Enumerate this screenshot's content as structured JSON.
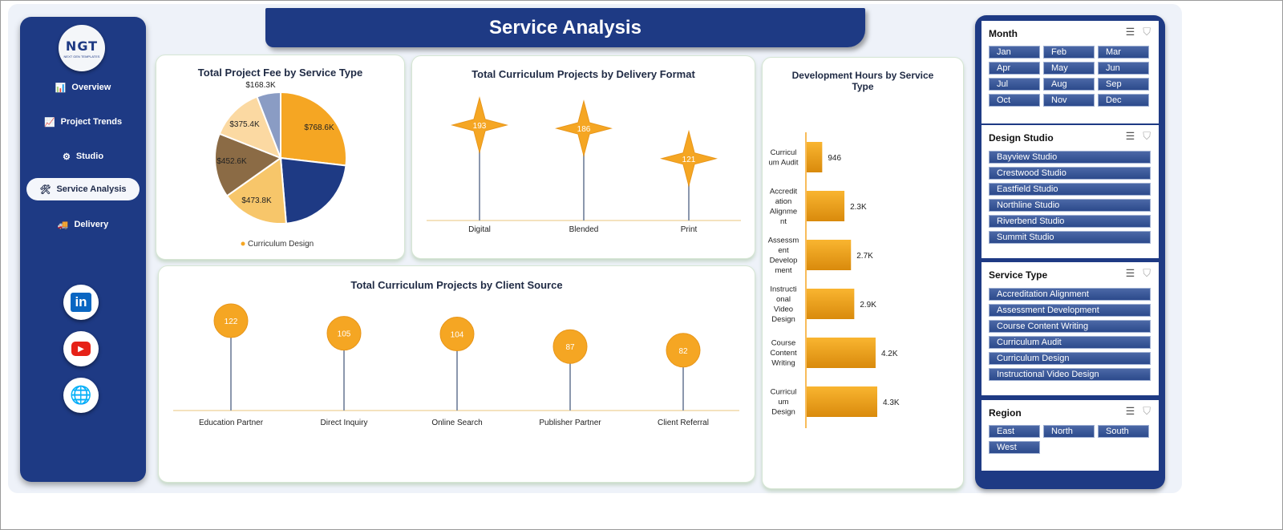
{
  "header": {
    "title": "Service Analysis"
  },
  "logo": {
    "mark": "NGT",
    "tagline": "NEXT GEN TEMPLATES"
  },
  "nav": {
    "items": [
      {
        "label": "Overview",
        "icon": "bar-chart-icon",
        "glyph": "📊",
        "active": false
      },
      {
        "label": "Project Trends",
        "icon": "line-chart-icon",
        "glyph": "📈",
        "active": false
      },
      {
        "label": "Studio",
        "icon": "gear-icon",
        "glyph": "⚙",
        "active": false
      },
      {
        "label": "Service Analysis",
        "icon": "tools-icon",
        "glyph": "🛠",
        "active": true
      },
      {
        "label": "Delivery",
        "icon": "truck-icon",
        "glyph": "🚚",
        "active": false
      }
    ],
    "social": [
      {
        "name": "linkedin-icon",
        "text": "in",
        "color": "#0a66c2"
      },
      {
        "name": "youtube-icon",
        "text": "▶",
        "color": "#e62117"
      },
      {
        "name": "globe-icon",
        "text": "🌐",
        "color": "#1a9ad6"
      }
    ]
  },
  "colors": {
    "navy": "#1e3a84",
    "accent": "#f5a623",
    "pie": [
      "#f5a623",
      "#1e3a84",
      "#f7c66a",
      "#8b6b45",
      "#fbd9a2",
      "#8a9cc4"
    ]
  },
  "charts": {
    "pie": {
      "title": "Total Project Fee by Service Type",
      "legend_label": "Curriculum Design",
      "chart_data": {
        "type": "pie",
        "labels": [
          "$768.6K",
          "",
          "$473.8K",
          "$452.6K",
          "$375.4K",
          "$168.3K"
        ],
        "values": [
          768.6,
          624.5,
          473.8,
          452.6,
          375.4,
          168.3
        ]
      }
    },
    "delivery": {
      "title": "Total Curriculum Projects by Delivery Format",
      "chart_data": {
        "type": "scatter",
        "categories": [
          "Digital",
          "Blended",
          "Print"
        ],
        "values": [
          193,
          186,
          121
        ]
      }
    },
    "client": {
      "title": "Total Curriculum Projects by Client Source",
      "chart_data": {
        "type": "scatter",
        "categories": [
          "Education Partner",
          "Direct Inquiry",
          "Online Search",
          "Publisher Partner",
          "Client Referral"
        ],
        "values": [
          122,
          105,
          104,
          87,
          82
        ]
      }
    },
    "hours": {
      "title_line1": "Development Hours by Service",
      "title_line2": "Type",
      "chart_data": {
        "type": "bar",
        "categories": [
          [
            "Curricul",
            "um Audit"
          ],
          [
            "Accredit",
            "ation",
            "Alignme",
            "nt"
          ],
          [
            "Assessm",
            "ent",
            "Develop",
            "ment"
          ],
          [
            "Instructi",
            "onal",
            "Video",
            "Design"
          ],
          [
            "Course",
            "Content",
            "Writing"
          ],
          [
            "Curricul",
            "um",
            "Design"
          ]
        ],
        "values": [
          946,
          2300,
          2700,
          2900,
          4200,
          4300
        ],
        "labels": [
          "946",
          "2.3K",
          "2.7K",
          "2.9K",
          "4.2K",
          "4.3K"
        ]
      }
    }
  },
  "slicers": [
    {
      "title": "Month",
      "columns": 3,
      "options": [
        "Jan",
        "Feb",
        "Mar",
        "Apr",
        "May",
        "Jun",
        "Jul",
        "Aug",
        "Sep",
        "Oct",
        "Nov",
        "Dec"
      ]
    },
    {
      "title": "Design Studio",
      "columns": 1,
      "options": [
        "Bayview Studio",
        "Crestwood Studio",
        "Eastfield Studio",
        "Northline Studio",
        "Riverbend Studio",
        "Summit Studio"
      ]
    },
    {
      "title": "Service Type",
      "columns": 1,
      "options": [
        "Accreditation Alignment",
        "Assessment Development",
        "Course Content Writing",
        "Curriculum Audit",
        "Curriculum Design",
        "Instructional Video Design"
      ]
    },
    {
      "title": "Region",
      "columns": 3,
      "options": [
        "East",
        "North",
        "South",
        "West"
      ]
    }
  ]
}
